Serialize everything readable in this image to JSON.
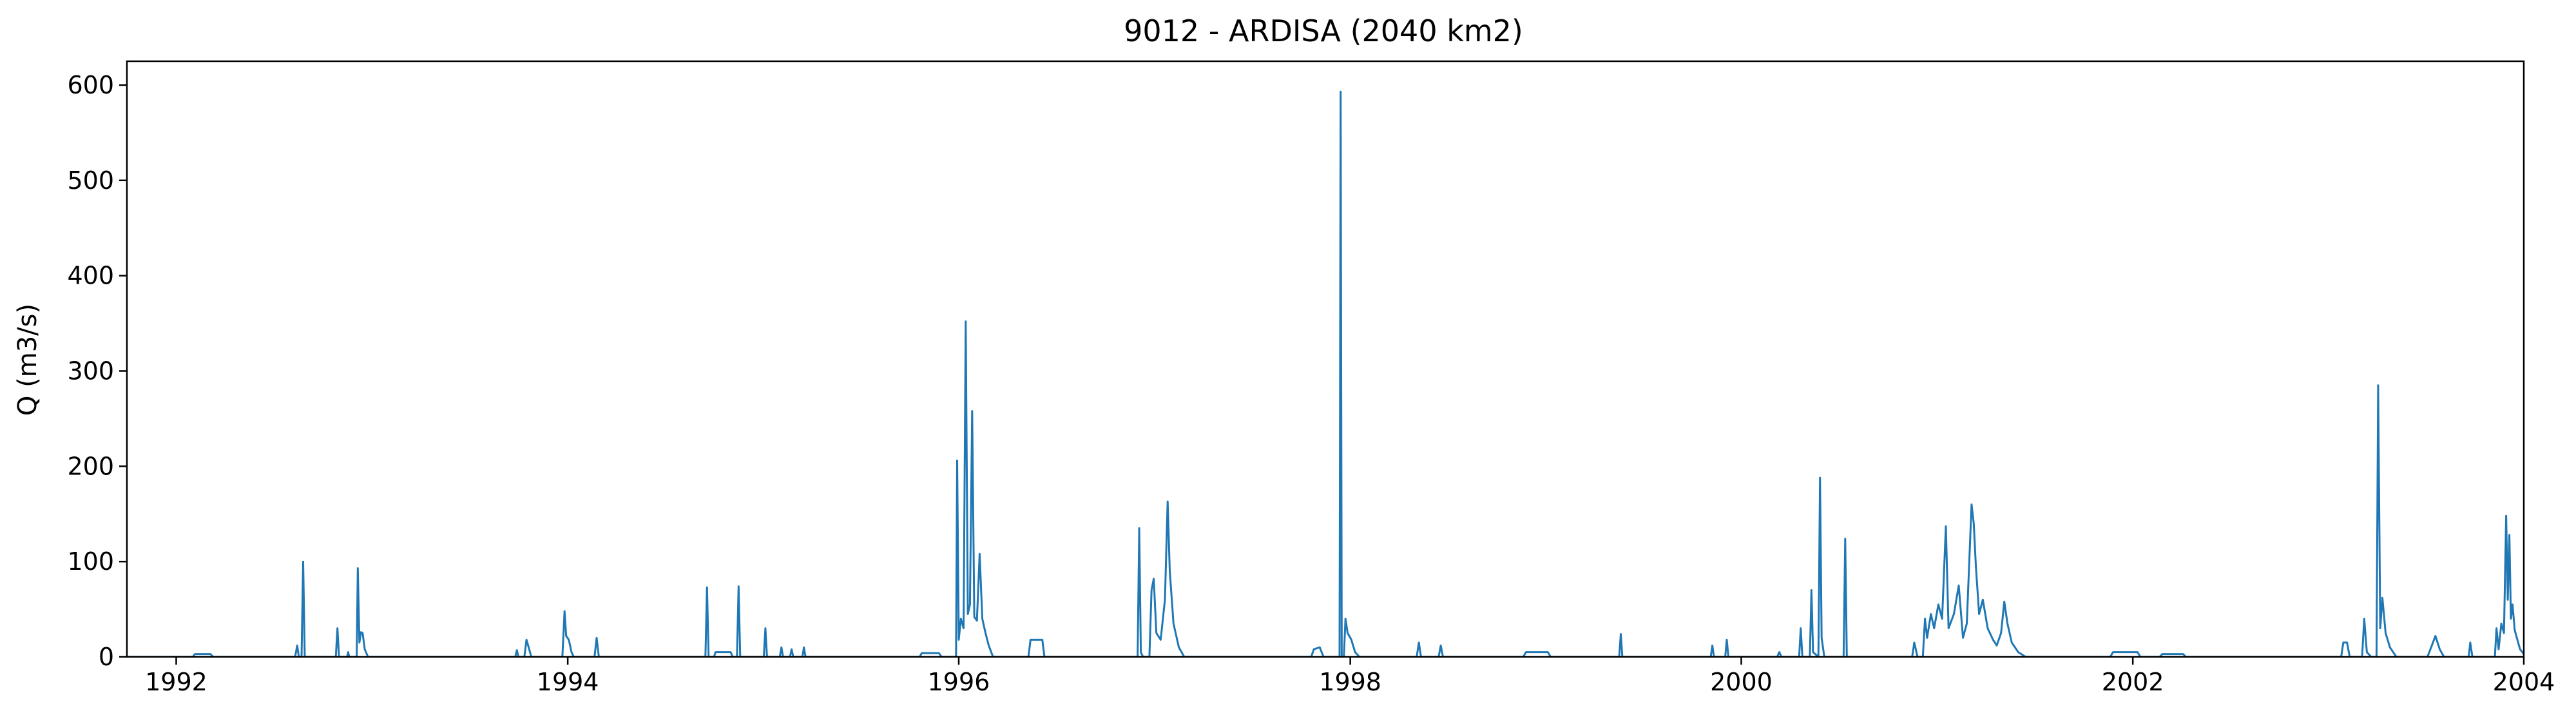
{
  "chart_data": {
    "type": "line",
    "title": "9012 - ARDISA (2040 km2)",
    "xlabel": "",
    "ylabel": "Q (m3/s)",
    "xlim": [
      "1991-10-01",
      "2004-01-01"
    ],
    "ylim": [
      0,
      625
    ],
    "x_ticks": [
      {
        "date": "1992-01-01",
        "label": "1992"
      },
      {
        "date": "1994-01-01",
        "label": "1994"
      },
      {
        "date": "1996-01-01",
        "label": "1996"
      },
      {
        "date": "1998-01-01",
        "label": "1998"
      },
      {
        "date": "2000-01-01",
        "label": "2000"
      },
      {
        "date": "2002-01-01",
        "label": "2002"
      },
      {
        "date": "2004-01-01",
        "label": "2004"
      }
    ],
    "y_ticks": [
      {
        "value": 0,
        "label": "0"
      },
      {
        "value": 100,
        "label": "100"
      },
      {
        "value": 200,
        "label": "200"
      },
      {
        "value": 300,
        "label": "300"
      },
      {
        "value": 400,
        "label": "400"
      },
      {
        "value": 500,
        "label": "500"
      },
      {
        "value": 600,
        "label": "600"
      }
    ],
    "grid": false,
    "line_color": "#1f77b4",
    "series": [
      {
        "name": "",
        "points": [
          [
            "1991-10-01",
            0
          ],
          [
            "1992-02-01",
            0
          ],
          [
            "1992-02-05",
            3
          ],
          [
            "1992-03-05",
            3
          ],
          [
            "1992-03-10",
            0
          ],
          [
            "1992-08-10",
            0
          ],
          [
            "1992-08-14",
            12
          ],
          [
            "1992-08-17",
            0
          ],
          [
            "1992-08-22",
            0
          ],
          [
            "1992-08-25",
            100
          ],
          [
            "1992-08-28",
            0
          ],
          [
            "1992-10-25",
            0
          ],
          [
            "1992-10-28",
            30
          ],
          [
            "1992-10-31",
            0
          ],
          [
            "1992-11-15",
            0
          ],
          [
            "1992-11-17",
            5
          ],
          [
            "1992-11-19",
            0
          ],
          [
            "1992-12-03",
            0
          ],
          [
            "1992-12-05",
            93
          ],
          [
            "1992-12-08",
            15
          ],
          [
            "1992-12-11",
            26
          ],
          [
            "1992-12-14",
            25
          ],
          [
            "1992-12-18",
            8
          ],
          [
            "1992-12-24",
            0
          ],
          [
            "1993-09-25",
            0
          ],
          [
            "1993-09-28",
            7
          ],
          [
            "1993-10-01",
            0
          ],
          [
            "1993-10-12",
            0
          ],
          [
            "1993-10-16",
            18
          ],
          [
            "1993-10-20",
            10
          ],
          [
            "1993-10-25",
            0
          ],
          [
            "1993-12-22",
            0
          ],
          [
            "1993-12-26",
            48
          ],
          [
            "1993-12-29",
            22
          ],
          [
            "1994-01-03",
            18
          ],
          [
            "1994-01-08",
            5
          ],
          [
            "1994-01-12",
            0
          ],
          [
            "1994-02-20",
            0
          ],
          [
            "1994-02-24",
            20
          ],
          [
            "1994-02-28",
            0
          ],
          [
            "1994-09-15",
            0
          ],
          [
            "1994-09-18",
            73
          ],
          [
            "1994-09-21",
            0
          ],
          [
            "1994-10-01",
            0
          ],
          [
            "1994-10-04",
            5
          ],
          [
            "1994-11-01",
            5
          ],
          [
            "1994-11-05",
            0
          ],
          [
            "1994-11-13",
            0
          ],
          [
            "1994-11-16",
            74
          ],
          [
            "1994-11-19",
            0
          ],
          [
            "1995-01-02",
            0
          ],
          [
            "1995-01-05",
            30
          ],
          [
            "1995-01-08",
            0
          ],
          [
            "1995-02-01",
            0
          ],
          [
            "1995-02-04",
            10
          ],
          [
            "1995-02-07",
            0
          ],
          [
            "1995-02-20",
            0
          ],
          [
            "1995-02-23",
            8
          ],
          [
            "1995-02-26",
            0
          ],
          [
            "1995-03-15",
            0
          ],
          [
            "1995-03-18",
            10
          ],
          [
            "1995-03-21",
            0
          ],
          [
            "1995-10-20",
            0
          ],
          [
            "1995-10-24",
            4
          ],
          [
            "1995-11-25",
            4
          ],
          [
            "1995-11-30",
            0
          ],
          [
            "1995-12-27",
            0
          ],
          [
            "1995-12-29",
            206
          ],
          [
            "1996-01-01",
            18
          ],
          [
            "1996-01-05",
            40
          ],
          [
            "1996-01-10",
            30
          ],
          [
            "1996-01-14",
            352
          ],
          [
            "1996-01-18",
            45
          ],
          [
            "1996-01-22",
            55
          ],
          [
            "1996-01-26",
            258
          ],
          [
            "1996-01-30",
            42
          ],
          [
            "1996-02-04",
            38
          ],
          [
            "1996-02-09",
            108
          ],
          [
            "1996-02-14",
            40
          ],
          [
            "1996-02-20",
            25
          ],
          [
            "1996-02-26",
            12
          ],
          [
            "1996-03-05",
            0
          ],
          [
            "1996-05-10",
            0
          ],
          [
            "1996-05-14",
            18
          ],
          [
            "1996-06-05",
            18
          ],
          [
            "1996-06-09",
            0
          ],
          [
            "1996-11-30",
            0
          ],
          [
            "1996-12-03",
            135
          ],
          [
            "1996-12-06",
            5
          ],
          [
            "1996-12-10",
            0
          ],
          [
            "1996-12-22",
            0
          ],
          [
            "1996-12-26",
            70
          ],
          [
            "1996-12-30",
            82
          ],
          [
            "1997-01-04",
            25
          ],
          [
            "1997-01-12",
            18
          ],
          [
            "1997-01-20",
            60
          ],
          [
            "1997-01-25",
            163
          ],
          [
            "1997-01-29",
            90
          ],
          [
            "1997-02-05",
            35
          ],
          [
            "1997-02-15",
            10
          ],
          [
            "1997-02-25",
            0
          ],
          [
            "1997-10-20",
            0
          ],
          [
            "1997-10-25",
            8
          ],
          [
            "1997-11-05",
            10
          ],
          [
            "1997-11-12",
            0
          ],
          [
            "1997-12-12",
            0
          ],
          [
            "1997-12-14",
            593
          ],
          [
            "1997-12-16",
            0
          ],
          [
            "1997-12-20",
            0
          ],
          [
            "1997-12-23",
            40
          ],
          [
            "1997-12-27",
            25
          ],
          [
            "1998-01-03",
            18
          ],
          [
            "1998-01-10",
            5
          ],
          [
            "1998-01-18",
            0
          ],
          [
            "1998-05-05",
            0
          ],
          [
            "1998-05-09",
            15
          ],
          [
            "1998-05-13",
            0
          ],
          [
            "1998-06-15",
            0
          ],
          [
            "1998-06-19",
            12
          ],
          [
            "1998-06-23",
            0
          ],
          [
            "1998-11-20",
            0
          ],
          [
            "1998-11-25",
            5
          ],
          [
            "1999-01-05",
            5
          ],
          [
            "1999-01-10",
            0
          ],
          [
            "1999-05-18",
            0
          ],
          [
            "1999-05-21",
            24
          ],
          [
            "1999-05-24",
            0
          ],
          [
            "1999-11-05",
            0
          ],
          [
            "1999-11-08",
            12
          ],
          [
            "1999-11-11",
            0
          ],
          [
            "1999-12-02",
            0
          ],
          [
            "1999-12-05",
            18
          ],
          [
            "1999-12-08",
            0
          ],
          [
            "2000-03-08",
            0
          ],
          [
            "2000-03-12",
            5
          ],
          [
            "2000-03-16",
            0
          ],
          [
            "2000-04-18",
            0
          ],
          [
            "2000-04-21",
            30
          ],
          [
            "2000-04-24",
            0
          ],
          [
            "2000-05-08",
            0
          ],
          [
            "2000-05-11",
            70
          ],
          [
            "2000-05-14",
            5
          ],
          [
            "2000-05-24",
            0
          ],
          [
            "2000-05-27",
            188
          ],
          [
            "2000-05-30",
            20
          ],
          [
            "2000-06-04",
            0
          ],
          [
            "2000-07-10",
            0
          ],
          [
            "2000-07-13",
            124
          ],
          [
            "2000-07-16",
            0
          ],
          [
            "2000-11-15",
            0
          ],
          [
            "2000-11-19",
            15
          ],
          [
            "2000-11-25",
            0
          ],
          [
            "2000-12-05",
            0
          ],
          [
            "2000-12-09",
            40
          ],
          [
            "2000-12-13",
            20
          ],
          [
            "2000-12-20",
            45
          ],
          [
            "2000-12-26",
            30
          ],
          [
            "2001-01-03",
            55
          ],
          [
            "2001-01-10",
            40
          ],
          [
            "2001-01-17",
            137
          ],
          [
            "2001-01-22",
            30
          ],
          [
            "2001-02-01",
            45
          ],
          [
            "2001-02-10",
            75
          ],
          [
            "2001-02-18",
            20
          ],
          [
            "2001-02-25",
            35
          ],
          [
            "2001-03-06",
            160
          ],
          [
            "2001-03-10",
            140
          ],
          [
            "2001-03-14",
            95
          ],
          [
            "2001-03-20",
            45
          ],
          [
            "2001-03-27",
            60
          ],
          [
            "2001-04-05",
            30
          ],
          [
            "2001-04-15",
            18
          ],
          [
            "2001-04-22",
            12
          ],
          [
            "2001-04-30",
            25
          ],
          [
            "2001-05-06",
            58
          ],
          [
            "2001-05-12",
            35
          ],
          [
            "2001-05-20",
            15
          ],
          [
            "2001-06-01",
            5
          ],
          [
            "2001-06-15",
            0
          ],
          [
            "2001-11-20",
            0
          ],
          [
            "2001-11-25",
            5
          ],
          [
            "2002-01-10",
            5
          ],
          [
            "2002-01-15",
            0
          ],
          [
            "2002-02-20",
            0
          ],
          [
            "2002-02-25",
            3
          ],
          [
            "2002-04-05",
            3
          ],
          [
            "2002-04-10",
            0
          ],
          [
            "2003-01-25",
            0
          ],
          [
            "2003-01-29",
            15
          ],
          [
            "2003-02-05",
            15
          ],
          [
            "2003-02-10",
            0
          ],
          [
            "2003-03-05",
            0
          ],
          [
            "2003-03-09",
            40
          ],
          [
            "2003-03-14",
            5
          ],
          [
            "2003-03-22",
            0
          ],
          [
            "2003-04-01",
            0
          ],
          [
            "2003-04-04",
            285
          ],
          [
            "2003-04-08",
            30
          ],
          [
            "2003-04-12",
            62
          ],
          [
            "2003-04-18",
            25
          ],
          [
            "2003-04-26",
            10
          ],
          [
            "2003-05-08",
            0
          ],
          [
            "2003-07-05",
            0
          ],
          [
            "2003-07-12",
            10
          ],
          [
            "2003-07-20",
            22
          ],
          [
            "2003-07-28",
            8
          ],
          [
            "2003-08-05",
            0
          ],
          [
            "2003-09-20",
            0
          ],
          [
            "2003-09-23",
            15
          ],
          [
            "2003-09-27",
            0
          ],
          [
            "2003-11-08",
            0
          ],
          [
            "2003-11-11",
            30
          ],
          [
            "2003-11-15",
            8
          ],
          [
            "2003-11-20",
            35
          ],
          [
            "2003-11-25",
            25
          ],
          [
            "2003-11-29",
            148
          ],
          [
            "2003-12-02",
            60
          ],
          [
            "2003-12-05",
            128
          ],
          [
            "2003-12-08",
            40
          ],
          [
            "2003-12-11",
            55
          ],
          [
            "2003-12-15",
            28
          ],
          [
            "2003-12-20",
            18
          ],
          [
            "2003-12-25",
            8
          ],
          [
            "2004-01-01",
            3
          ]
        ]
      }
    ]
  }
}
